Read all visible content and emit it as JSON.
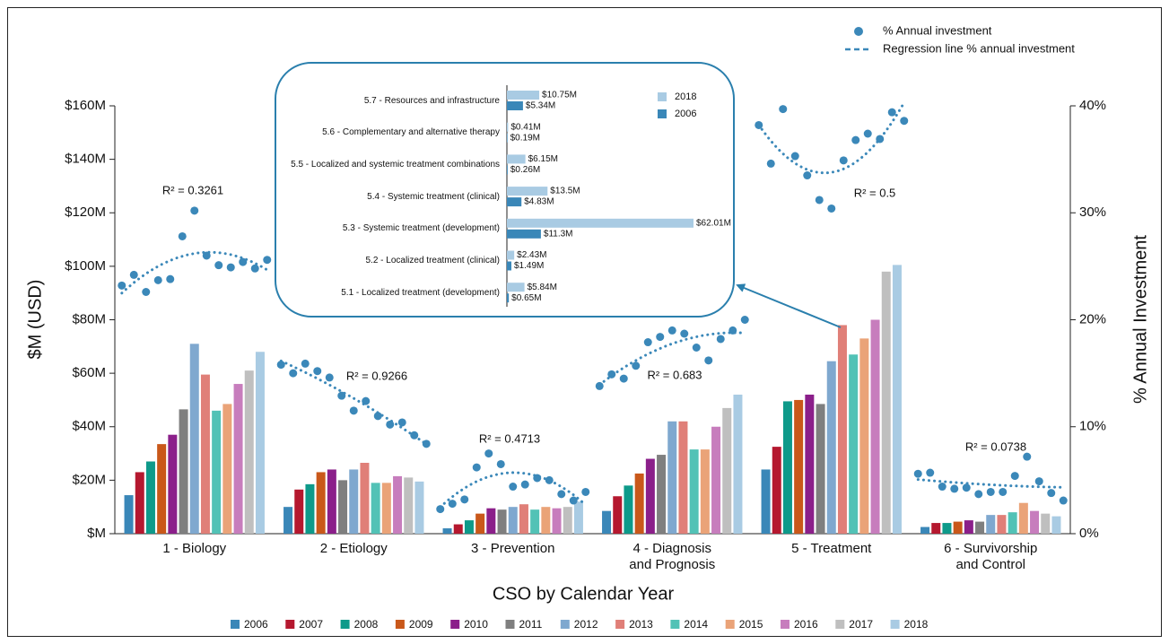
{
  "chart_data": [
    {
      "type": "bar",
      "xlabel": "CSO by Calendar Year",
      "ylabel": "$M (USD)",
      "y2label": "% Annual Investment",
      "categories": [
        "1 - Biology",
        "2 - Etiology",
        "3 - Prevention",
        "4 - Diagnosis and Prognosis",
        "5 - Treatment",
        "6 - Survivorship and Control"
      ],
      "series": [
        {
          "name": "2006",
          "color": "#3a87b8",
          "values": [
            14.4,
            10,
            2,
            8.5,
            24,
            2.5
          ]
        },
        {
          "name": "2007",
          "color": "#b5182f",
          "values": [
            23,
            16.5,
            3.5,
            14,
            32.5,
            4
          ]
        },
        {
          "name": "2008",
          "color": "#0e9a8a",
          "values": [
            27,
            18.5,
            5,
            18,
            49.5,
            4
          ]
        },
        {
          "name": "2009",
          "color": "#c9581a",
          "values": [
            33.5,
            23,
            7.5,
            22.5,
            50,
            4.5
          ]
        },
        {
          "name": "2010",
          "color": "#8b1f8a",
          "values": [
            37,
            24,
            9.5,
            28,
            52,
            5
          ]
        },
        {
          "name": "2011",
          "color": "#7f7f7f",
          "values": [
            46.5,
            20,
            9,
            29.5,
            48.5,
            4.5
          ]
        },
        {
          "name": "2012",
          "color": "#7fa8cf",
          "values": [
            71,
            24,
            10,
            42,
            64.5,
            7
          ]
        },
        {
          "name": "2013",
          "color": "#e07f78",
          "values": [
            59.5,
            26.5,
            11,
            42,
            78,
            7
          ]
        },
        {
          "name": "2014",
          "color": "#52c2b6",
          "values": [
            46,
            19,
            9,
            31.5,
            67,
            8
          ]
        },
        {
          "name": "2015",
          "color": "#eaa378",
          "values": [
            48.5,
            19,
            10,
            31.5,
            73,
            11.5
          ]
        },
        {
          "name": "2016",
          "color": "#c77dbd",
          "values": [
            56,
            21.5,
            9.5,
            40,
            80,
            8.5
          ]
        },
        {
          "name": "2017",
          "color": "#bfbfbf",
          "values": [
            61,
            21,
            10,
            47,
            98,
            7.5
          ]
        },
        {
          "name": "2018",
          "color": "#a9cbe3",
          "values": [
            68,
            19.5,
            12,
            52,
            100.5,
            6.5
          ]
        }
      ],
      "ylim": [
        0,
        160
      ],
      "yticks": [
        {
          "value": 0,
          "label": "$M"
        },
        {
          "value": 20,
          "label": "$20M"
        },
        {
          "value": 40,
          "label": "$40M"
        },
        {
          "value": 60,
          "label": "$60M"
        },
        {
          "value": 80,
          "label": "$80M"
        },
        {
          "value": 100,
          "label": "$100M"
        },
        {
          "value": 120,
          "label": "$120M"
        },
        {
          "value": 140,
          "label": "$140M"
        },
        {
          "value": 160,
          "label": "$160M"
        }
      ],
      "y2lim": [
        0,
        40
      ],
      "y2ticks": [
        {
          "value": 0,
          "label": "0%"
        },
        {
          "value": 10,
          "label": "10%"
        },
        {
          "value": 20,
          "label": "20%"
        },
        {
          "value": 30,
          "label": "30%"
        },
        {
          "value": 40,
          "label": "40%"
        }
      ],
      "percent_series": {
        "name": "% Annual investment",
        "regression_name": "Regression line % annual investment",
        "color": "#3b88b9",
        "axis": "y2",
        "values": [
          [
            23.2,
            24.2,
            22.6,
            23.7,
            23.8,
            27.8,
            30.2,
            26,
            25.1,
            24.9,
            25.4,
            24.8,
            25.6
          ],
          [
            15.8,
            15.0,
            15.9,
            15.2,
            14.6,
            12.9,
            11.5,
            12.4,
            11.0,
            10.2,
            10.4,
            9.2,
            8.4
          ],
          [
            2.3,
            2.8,
            3.2,
            6.2,
            7.5,
            6.5,
            4.4,
            4.6,
            5.2,
            5.0,
            3.7,
            3.1,
            3.9
          ],
          [
            13.8,
            14.9,
            14.5,
            15.7,
            17.9,
            18.4,
            19.0,
            18.7,
            17.4,
            16.2,
            18.2,
            19.0,
            20.0
          ],
          [
            38.2,
            34.6,
            39.7,
            35.3,
            33.5,
            31.2,
            30.4,
            34.9,
            36.8,
            37.4,
            36.9,
            39.4,
            38.6
          ],
          [
            5.6,
            5.7,
            4.4,
            4.2,
            4.3,
            3.7,
            3.9,
            3.9,
            5.4,
            7.2,
            4.9,
            3.8,
            3.1
          ]
        ],
        "r2_labels": [
          "R² = 0.3261",
          "R² = 0.9266",
          "R² = 0.4713",
          "R² = 0.683",
          "R² = 0.5",
          "R² = 0.0738"
        ]
      }
    },
    {
      "type": "hbar",
      "categories": [
        "5.7 - Resources and infrastructure",
        "5.6 - Complementary and alternative therapy",
        "5.5 - Localized and systemic treatment combinations",
        "5.4 - Systemic treatment (clinical)",
        "5.3 - Systemic treatment (development)",
        "5.2 - Localized treatment (clinical)",
        "5.1 - Localized treatment (development)"
      ],
      "series": [
        {
          "name": "2018",
          "color": "#a9cbe3",
          "values": [
            10.75,
            0.41,
            6.15,
            13.5,
            62.01,
            2.43,
            5.84
          ],
          "value_labels": [
            "$10.75M",
            "$0.41M",
            "$6.15M",
            "$13.5M",
            "$62.01M",
            "$2.43M",
            "$5.84M"
          ]
        },
        {
          "name": "2006",
          "color": "#3a87b8",
          "values": [
            5.34,
            0.19,
            0.26,
            4.83,
            11.3,
            1.49,
            0.65
          ],
          "value_labels": [
            "$5.34M",
            "$0.19M",
            "$0.26M",
            "$4.83M",
            "$11.3M",
            "$1.49M",
            "$0.65M"
          ]
        }
      ]
    }
  ]
}
